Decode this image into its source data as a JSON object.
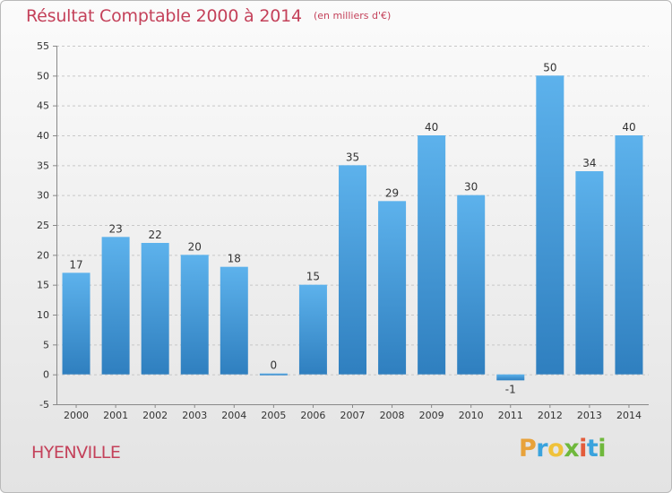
{
  "chart_data": {
    "type": "bar",
    "title": "Résultat Comptable 2000 à 2014",
    "subtitle": "(en milliers d'€)",
    "categories": [
      "2000",
      "2001",
      "2002",
      "2003",
      "2004",
      "2005",
      "2006",
      "2007",
      "2008",
      "2009",
      "2010",
      "2011",
      "2012",
      "2013",
      "2014"
    ],
    "values": [
      17,
      23,
      22,
      20,
      18,
      0,
      15,
      35,
      29,
      40,
      30,
      -1,
      50,
      34,
      40
    ],
    "ylim": [
      -5,
      55
    ],
    "yticks": [
      -5,
      0,
      5,
      10,
      15,
      20,
      25,
      30,
      35,
      40,
      45,
      50,
      55
    ],
    "grid": true,
    "xlabel": "",
    "ylabel": ""
  },
  "commune": "HYENVILLE",
  "logo": {
    "letters": [
      "P",
      "r",
      "o",
      "x",
      "i",
      "t",
      "i"
    ],
    "colors": [
      "#e8a23a",
      "#3aa3dd",
      "#f0c23a",
      "#6fb83c",
      "#e35c3b",
      "#3aa3dd",
      "#6fb83c"
    ]
  },
  "colors": {
    "bar_light": "#5db2ec",
    "bar_dark": "#2f7fbf",
    "accent": "#c4415a"
  }
}
